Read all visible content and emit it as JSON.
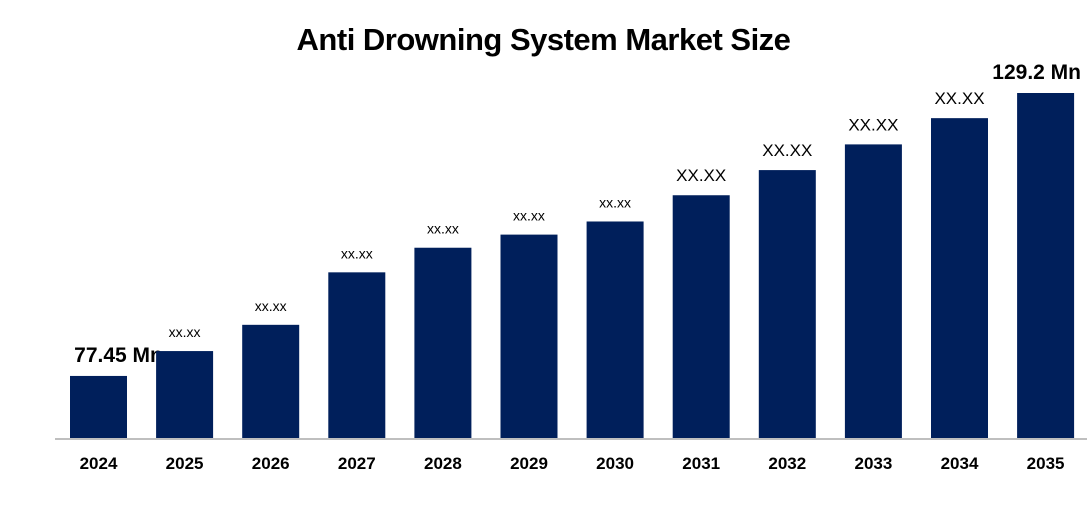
{
  "chart_data": {
    "type": "bar",
    "title": "Anti Drowning System Market Size",
    "xlabel": "",
    "ylabel": "",
    "categories": [
      "2024",
      "2025",
      "2026",
      "2027",
      "2028",
      "2029",
      "2030",
      "2031",
      "2032",
      "2033",
      "2034",
      "2035"
    ],
    "values": [
      77.45,
      82.0,
      86.8,
      96.4,
      100.9,
      103.3,
      105.7,
      110.5,
      115.1,
      119.8,
      124.6,
      129.2
    ],
    "data_labels": [
      "77.45 Mn",
      "xx.xx",
      "xx.xx",
      "xx.xx",
      "xx.xx",
      "xx.xx",
      "xx.xx",
      "XX.XX",
      "XX.XX",
      "XX.XX",
      "XX.XX",
      "129.2 Mn"
    ],
    "ylim": [
      66.1,
      129.2
    ],
    "grid": false,
    "legend": "none",
    "bar_color": "#001F5B",
    "axis_color": "#BFBFBF"
  }
}
